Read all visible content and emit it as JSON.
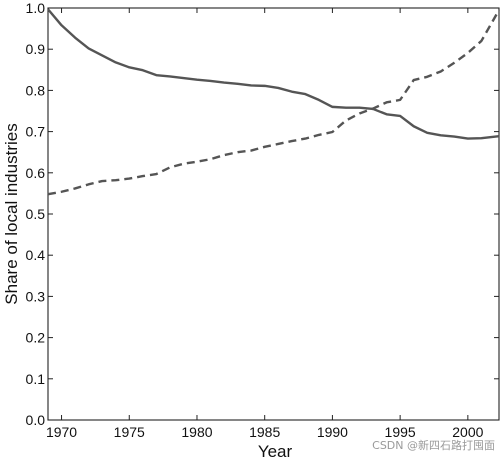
{
  "chart_data": {
    "type": "line",
    "xlabel": "Year",
    "ylabel": "Share of local industries",
    "xlim": [
      1969,
      2002.3
    ],
    "ylim": [
      0.0,
      1.0
    ],
    "x_ticks": [
      1970,
      1975,
      1980,
      1985,
      1990,
      1995,
      2000
    ],
    "y_ticks": [
      0.0,
      0.1,
      0.2,
      0.3,
      0.4,
      0.5,
      0.6,
      0.7,
      0.8,
      0.9,
      1.0
    ],
    "grid": false,
    "legend": "none",
    "series": [
      {
        "style": "solid",
        "color": "#555555",
        "x": [
          1969,
          1970,
          1971,
          1972,
          1973,
          1974,
          1975,
          1976,
          1977,
          1978,
          1979,
          1980,
          1981,
          1982,
          1983,
          1984,
          1985,
          1986,
          1987,
          1988,
          1989,
          1990,
          1991,
          1992,
          1993,
          1994,
          1995,
          1996,
          1997,
          1998,
          1999,
          2000,
          2001,
          2002.3
        ],
        "y": [
          0.997,
          0.958,
          0.928,
          0.902,
          0.885,
          0.868,
          0.856,
          0.849,
          0.837,
          0.834,
          0.83,
          0.826,
          0.823,
          0.819,
          0.816,
          0.812,
          0.811,
          0.806,
          0.797,
          0.791,
          0.777,
          0.76,
          0.758,
          0.758,
          0.755,
          0.742,
          0.738,
          0.713,
          0.697,
          0.691,
          0.688,
          0.683,
          0.684,
          0.689
        ]
      },
      {
        "style": "dashed",
        "color": "#555555",
        "x": [
          1969,
          1970,
          1971,
          1972,
          1973,
          1974,
          1975,
          1976,
          1977,
          1978,
          1979,
          1980,
          1981,
          1982,
          1983,
          1984,
          1985,
          1986,
          1987,
          1988,
          1989,
          1990,
          1991,
          1992,
          1993,
          1994,
          1995,
          1996,
          1997,
          1998,
          1999,
          2000,
          2001,
          2002.3
        ],
        "y": [
          0.548,
          0.554,
          0.562,
          0.572,
          0.58,
          0.582,
          0.586,
          0.592,
          0.597,
          0.613,
          0.622,
          0.627,
          0.633,
          0.643,
          0.65,
          0.654,
          0.663,
          0.67,
          0.677,
          0.683,
          0.692,
          0.699,
          0.727,
          0.744,
          0.756,
          0.771,
          0.777,
          0.825,
          0.833,
          0.846,
          0.867,
          0.891,
          0.92,
          0.995
        ]
      }
    ]
  },
  "watermark": "CSDN @新四石路打囤面"
}
